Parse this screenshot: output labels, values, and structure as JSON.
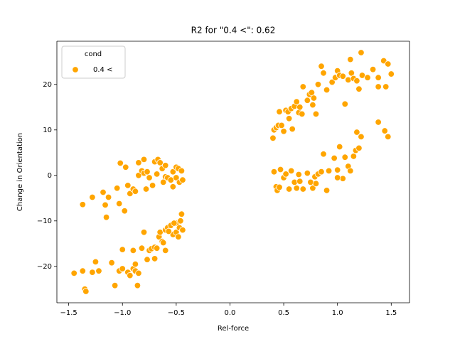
{
  "chart_data": {
    "type": "scatter",
    "title": "R2 for \"0.4 <\": 0.62",
    "x_label": "Rel-force",
    "y_label": "Change in Orientation",
    "legend_title": "cond",
    "legend_position": "upper left",
    "xlim": [
      -1.61,
      1.67
    ],
    "ylim": [
      -28.0,
      29.5
    ],
    "xticks": [
      {
        "value": -1.5,
        "label": "−1.5"
      },
      {
        "value": -1.0,
        "label": "−1.0"
      },
      {
        "value": -0.5,
        "label": "−0.5"
      },
      {
        "value": 0,
        "label": "0.0"
      },
      0.5,
      {
        "value": 1,
        "label": "1.0"
      },
      1.5
    ],
    "yticks": [
      {
        "value": -20,
        "label": "−20"
      },
      {
        "value": -10,
        "label": "−10"
      },
      0,
      10,
      20
    ],
    "grid": false,
    "series": [
      {
        "name": "0.4 <",
        "color": "#ffa500",
        "x": [
          -1.45,
          -1.37,
          -1.35,
          -1.34,
          -1.28,
          -1.25,
          -1.22,
          -1.1,
          -1.07,
          -1.03,
          -1.0,
          -1.0,
          -0.95,
          -0.93,
          -0.9,
          -0.88,
          -0.88,
          -0.86,
          -0.85,
          -0.9,
          -0.82,
          -0.8,
          -0.77,
          -0.75,
          -0.73,
          -0.7,
          -0.7,
          -0.68,
          -0.66,
          -0.65,
          -0.63,
          -0.62,
          -0.6,
          -0.6,
          -0.58,
          -0.55,
          -0.53,
          -0.5,
          -0.5,
          -0.48,
          -0.47,
          -0.46,
          -0.45,
          -0.44,
          -0.52,
          -0.57,
          -1.37,
          -1.28,
          -1.18,
          -1.16,
          -1.15,
          -1.13,
          -1.05,
          -1.03,
          -1.02,
          -0.98,
          -0.97,
          -0.95,
          -0.93,
          -0.9,
          -0.88,
          -0.85,
          -0.85,
          -0.82,
          -0.8,
          -0.8,
          -0.78,
          -0.77,
          -0.75,
          -0.72,
          -0.7,
          -0.68,
          -0.67,
          -0.65,
          -0.63,
          -0.6,
          -0.6,
          -0.58,
          -0.55,
          -0.53,
          -0.5,
          -0.5,
          -0.48,
          -0.47,
          -0.45,
          -0.44,
          -0.53,
          -0.62,
          0.4,
          0.41,
          0.43,
          0.45,
          0.46,
          0.48,
          0.5,
          0.52,
          0.54,
          0.55,
          0.57,
          0.58,
          0.6,
          0.62,
          0.64,
          0.65,
          0.67,
          0.68,
          0.72,
          0.74,
          0.76,
          0.77,
          0.78,
          0.8,
          0.82,
          0.85,
          0.87,
          0.9,
          0.95,
          0.98,
          1.0,
          1.02,
          1.05,
          1.07,
          1.1,
          1.12,
          1.13,
          1.15,
          1.18,
          1.2,
          1.22,
          1.23,
          1.28,
          1.33,
          1.38,
          1.43,
          1.47,
          1.5,
          1.38,
          1.45,
          0.41,
          0.43,
          0.44,
          0.46,
          0.47,
          0.5,
          0.52,
          0.55,
          0.57,
          0.6,
          0.62,
          0.64,
          0.65,
          0.68,
          0.72,
          0.75,
          0.77,
          0.79,
          0.8,
          0.82,
          0.85,
          0.87,
          0.9,
          0.92,
          0.97,
          1.0,
          1.02,
          1.05,
          1.07,
          1.1,
          1.12,
          1.15,
          1.17,
          1.18,
          1.2,
          1.22,
          1.38,
          1.44,
          1.47,
          1.0
        ],
        "values": [
          -21.5,
          -21,
          -25,
          -25.5,
          -21.3,
          -19,
          -21,
          -19.2,
          -24.2,
          -21,
          -20.5,
          -16.3,
          -21.3,
          -22,
          -20.5,
          -19.5,
          -21,
          -24.2,
          -21.5,
          -16.5,
          -16,
          -12.5,
          -18.5,
          -16.5,
          -16.1,
          -18.3,
          -15.8,
          -16,
          -13.5,
          -12.5,
          -14.5,
          -14.8,
          -12,
          -16.5,
          -11.5,
          -11,
          -13,
          -10.5,
          -12.5,
          -13.5,
          -11.5,
          -10,
          -8.5,
          -12,
          -10.5,
          -12.3,
          -6.4,
          -4.8,
          -3.7,
          -6.5,
          -9.2,
          -4.8,
          -2.8,
          -6.2,
          2.7,
          -7.8,
          1.8,
          -2.2,
          -4,
          -3,
          -3.5,
          0,
          2.8,
          1,
          3.5,
          0.5,
          -3,
          0.8,
          -0.5,
          -2.2,
          3,
          0.3,
          3.5,
          2.8,
          1.5,
          2.2,
          -0.3,
          -0.5,
          -1,
          0.8,
          1.8,
          -0.5,
          1.5,
          -1.5,
          1,
          -1,
          -2.5,
          -1.5,
          8.2,
          10,
          10.5,
          11,
          14,
          11,
          9.7,
          14.3,
          14,
          12.5,
          14.7,
          10.2,
          15.2,
          16.2,
          13.8,
          15,
          13.5,
          19.5,
          16.5,
          17.8,
          18.2,
          15.5,
          17,
          13.5,
          20,
          24,
          22.5,
          18.8,
          20.5,
          21.5,
          23,
          22,
          21.8,
          15.7,
          21,
          25.5,
          22.5,
          21.3,
          20.8,
          19,
          27,
          22,
          21.5,
          23.3,
          21.5,
          25.2,
          24.5,
          22.3,
          19.5,
          19.5,
          0.8,
          -2.5,
          -3.3,
          -2.6,
          1.3,
          -0.5,
          0.3,
          -3,
          1,
          -1.5,
          -2.8,
          0.2,
          -1.3,
          -3,
          0.5,
          -1.5,
          -2.8,
          -0.3,
          -1.8,
          0.3,
          0.8,
          4.7,
          -3.3,
          1,
          3.8,
          1.2,
          6.3,
          -0.7,
          4,
          2,
          1,
          4.2,
          5.5,
          9.5,
          6,
          8.5,
          11.7,
          9.8,
          8.5,
          -0.5
        ]
      }
    ]
  }
}
